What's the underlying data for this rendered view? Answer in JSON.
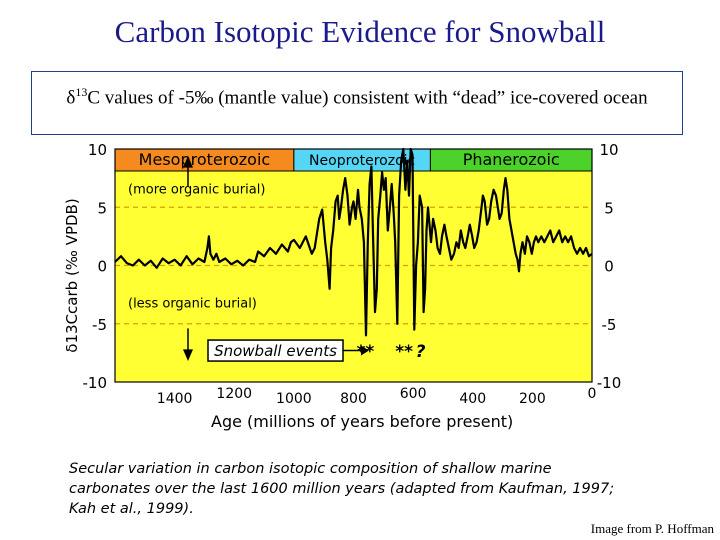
{
  "slide": {
    "title": "Carbon Isotopic Evidence for Snowball",
    "subtitle_prefix": "δ",
    "subtitle_sup": "13",
    "subtitle_rest": "C values of -5‰ (mantle value) consistent with “dead” ice-covered ocean",
    "credit": "Image from P. Hoffman"
  },
  "figure": {
    "caption": "Secular variation in carbon isotopic composition of shallow marine carbonates over the last 1600 million years (adapted from Kaufman, 1997; Kah et al., 1999).",
    "colors": {
      "plot_bg": "#ffff33",
      "meso": "#f58b1f",
      "neo": "#55d6f5",
      "phan": "#4bd12a",
      "line": "#000000",
      "dash": "#d9a000"
    }
  },
  "chart_data": {
    "type": "line",
    "xlabel": "Age (millions of years before present)",
    "ylabel": "δ13Ccarb (‰ VPDB)",
    "xlim": [
      1600,
      0
    ],
    "ylim": [
      -10,
      10
    ],
    "x_ticks": [
      1400,
      1200,
      1000,
      800,
      600,
      400,
      200,
      0
    ],
    "x_tick_labels": [
      "1400",
      "1200",
      "1000",
      "800",
      "600",
      "400",
      "200",
      "0"
    ],
    "y_ticks": [
      10,
      5,
      0,
      -5,
      -10
    ],
    "y_tick_labels": [
      "10",
      "5",
      "0",
      "-5",
      "-10"
    ],
    "grid": "dashed horizontal at 5, 0, -5",
    "eras": [
      {
        "name": "Mesoproterozoic",
        "from": 1600,
        "to": 1000
      },
      {
        "name": "Neoproterozoic",
        "from": 1000,
        "to": 542
      },
      {
        "name": "Phanerozoic",
        "from": 542,
        "to": 0
      }
    ],
    "annotations": {
      "upper": "(more organic burial)",
      "lower": "(less organic burial)",
      "snowball_label": "Snowball events",
      "snowball_marks": [
        {
          "x": 760,
          "text": "**"
        },
        {
          "x": 630,
          "text": "**"
        },
        {
          "x": 575,
          "text": "?"
        }
      ]
    },
    "series": [
      {
        "values": [
          [
            1600,
            0.3
          ],
          [
            1580,
            0.8
          ],
          [
            1560,
            0.2
          ],
          [
            1540,
            0.0
          ],
          [
            1520,
            0.5
          ],
          [
            1500,
            0.0
          ],
          [
            1480,
            0.4
          ],
          [
            1460,
            -0.2
          ],
          [
            1440,
            0.6
          ],
          [
            1420,
            0.2
          ],
          [
            1400,
            0.5
          ],
          [
            1380,
            0.0
          ],
          [
            1360,
            0.8
          ],
          [
            1340,
            0.1
          ],
          [
            1320,
            0.6
          ],
          [
            1300,
            0.3
          ],
          [
            1290,
            1.5
          ],
          [
            1285,
            2.5
          ],
          [
            1280,
            1.0
          ],
          [
            1270,
            0.5
          ],
          [
            1260,
            1.0
          ],
          [
            1250,
            0.3
          ],
          [
            1230,
            0.6
          ],
          [
            1210,
            0.1
          ],
          [
            1190,
            0.4
          ],
          [
            1170,
            0.0
          ],
          [
            1150,
            0.5
          ],
          [
            1130,
            0.3
          ],
          [
            1120,
            1.2
          ],
          [
            1100,
            0.8
          ],
          [
            1080,
            1.5
          ],
          [
            1060,
            1.0
          ],
          [
            1040,
            1.8
          ],
          [
            1020,
            1.2
          ],
          [
            1010,
            2.0
          ],
          [
            1000,
            2.2
          ],
          [
            980,
            1.5
          ],
          [
            960,
            2.5
          ],
          [
            940,
            1.0
          ],
          [
            930,
            1.5
          ],
          [
            915,
            4.0
          ],
          [
            905,
            4.8
          ],
          [
            895,
            2.0
          ],
          [
            888,
            0.5
          ],
          [
            880,
            -2.0
          ],
          [
            875,
            1.5
          ],
          [
            868,
            3.0
          ],
          [
            860,
            5.5
          ],
          [
            853,
            6.0
          ],
          [
            848,
            4.0
          ],
          [
            842,
            5.0
          ],
          [
            835,
            6.5
          ],
          [
            828,
            7.5
          ],
          [
            820,
            6.0
          ],
          [
            813,
            3.5
          ],
          [
            805,
            5.0
          ],
          [
            800,
            5.5
          ],
          [
            793,
            4.0
          ],
          [
            785,
            6.5
          ],
          [
            780,
            5.0
          ],
          [
            772,
            4.0
          ],
          [
            765,
            2.0
          ],
          [
            758,
            -6.0
          ],
          [
            752,
            2.0
          ],
          [
            746,
            7.0
          ],
          [
            740,
            8.5
          ],
          [
            735,
            3.0
          ],
          [
            728,
            -4.0
          ],
          [
            722,
            -2.0
          ],
          [
            717,
            4.0
          ],
          [
            710,
            6.0
          ],
          [
            704,
            8.0
          ],
          [
            698,
            6.5
          ],
          [
            692,
            7.5
          ],
          [
            685,
            3.0
          ],
          [
            678,
            5.0
          ],
          [
            672,
            7.0
          ],
          [
            665,
            4.5
          ],
          [
            660,
            2.0
          ],
          [
            653,
            -5.0
          ],
          [
            647,
            6.0
          ],
          [
            640,
            9.0
          ],
          [
            633,
            10.0
          ],
          [
            626,
            6.5
          ],
          [
            620,
            9.0
          ],
          [
            614,
            6.0
          ],
          [
            608,
            10.0
          ],
          [
            602,
            9.5
          ],
          [
            596,
            -5.5
          ],
          [
            590,
            0.0
          ],
          [
            584,
            2.0
          ],
          [
            578,
            6.0
          ],
          [
            570,
            5.0
          ],
          [
            565,
            -4.0
          ],
          [
            560,
            -2.0
          ],
          [
            555,
            3.0
          ],
          [
            550,
            5.0
          ],
          [
            545,
            3.5
          ],
          [
            540,
            2.0
          ],
          [
            533,
            4.0
          ],
          [
            525,
            3.0
          ],
          [
            518,
            1.5
          ],
          [
            510,
            1.0
          ],
          [
            503,
            2.5
          ],
          [
            495,
            3.5
          ],
          [
            488,
            2.5
          ],
          [
            480,
            1.5
          ],
          [
            472,
            0.5
          ],
          [
            463,
            1.0
          ],
          [
            455,
            2.0
          ],
          [
            447,
            1.5
          ],
          [
            440,
            3.0
          ],
          [
            432,
            2.0
          ],
          [
            425,
            1.5
          ],
          [
            417,
            2.5
          ],
          [
            410,
            3.5
          ],
          [
            402,
            2.5
          ],
          [
            395,
            1.5
          ],
          [
            387,
            2.0
          ],
          [
            380,
            3.0
          ],
          [
            373,
            4.5
          ],
          [
            366,
            6.0
          ],
          [
            360,
            5.5
          ],
          [
            352,
            3.5
          ],
          [
            345,
            4.0
          ],
          [
            338,
            5.5
          ],
          [
            330,
            6.5
          ],
          [
            322,
            6.0
          ],
          [
            316,
            5.0
          ],
          [
            310,
            4.0
          ],
          [
            303,
            4.5
          ],
          [
            296,
            6.5
          ],
          [
            290,
            7.5
          ],
          [
            284,
            6.5
          ],
          [
            277,
            4.0
          ],
          [
            270,
            3.0
          ],
          [
            263,
            2.0
          ],
          [
            256,
            1.0
          ],
          [
            250,
            0.5
          ],
          [
            245,
            -0.5
          ],
          [
            240,
            1.0
          ],
          [
            233,
            2.0
          ],
          [
            225,
            1.0
          ],
          [
            218,
            2.5
          ],
          [
            210,
            2.0
          ],
          [
            202,
            1.0
          ],
          [
            195,
            2.0
          ],
          [
            188,
            2.5
          ],
          [
            180,
            2.0
          ],
          [
            170,
            2.5
          ],
          [
            160,
            2.0
          ],
          [
            150,
            2.5
          ],
          [
            140,
            3.0
          ],
          [
            130,
            2.0
          ],
          [
            120,
            2.5
          ],
          [
            110,
            3.0
          ],
          [
            100,
            2.0
          ],
          [
            90,
            2.5
          ],
          [
            80,
            2.0
          ],
          [
            70,
            2.5
          ],
          [
            60,
            1.5
          ],
          [
            50,
            1.0
          ],
          [
            40,
            1.5
          ],
          [
            30,
            1.0
          ],
          [
            20,
            1.5
          ],
          [
            10,
            0.8
          ],
          [
            0,
            1.0
          ]
        ]
      }
    ]
  }
}
